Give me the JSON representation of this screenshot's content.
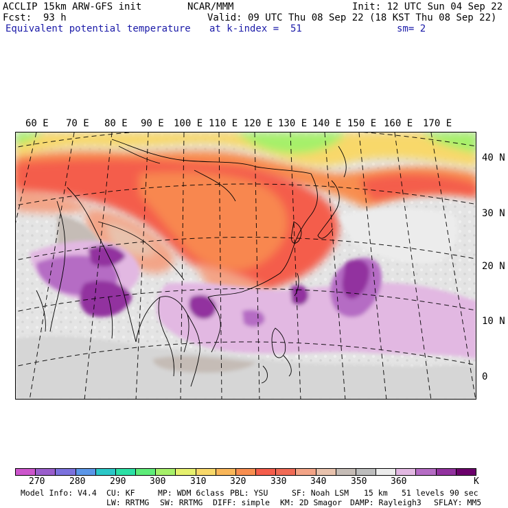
{
  "header": {
    "model": "ACCLIP 15km ARW-GFS init",
    "fcst_label": "Fcst:",
    "fcst_value": "93 h",
    "org": "NCAR/MMM",
    "init": "Init: 12 UTC Sun 04 Sep 22",
    "valid": "Valid: 09 UTC Thu 08 Sep 22 (18 KST Thu 08 Sep 22)",
    "field": "Equivalent potential temperature",
    "level": "at k-index =  51",
    "smooth": "sm= 2"
  },
  "map": {
    "lon_labels": [
      "60 E",
      "70 E",
      "80 E",
      "90 E",
      "100 E",
      "110 E",
      "120 E",
      "130 E",
      "140 E",
      "150 E",
      "160 E",
      "170 E"
    ],
    "lat_labels": [
      "40 N",
      "30 N",
      "20 N",
      "10 N",
      "0"
    ]
  },
  "colorbar": {
    "colors": [
      "#cc55cc",
      "#9a5ecc",
      "#7b71dd",
      "#5b96e8",
      "#2bc7c7",
      "#2ce0a5",
      "#5eec79",
      "#a6f06a",
      "#e6f06e",
      "#f8d86a",
      "#f9b659",
      "#f88e50",
      "#f45d4b",
      "#f06a55",
      "#f3a487",
      "#e8c2ad",
      "#c5bcb6",
      "#bdbdbd",
      "#ececec",
      "#e2b8e2",
      "#b56cc4",
      "#92329f",
      "#6b006b"
    ],
    "labels": [
      "270",
      "280",
      "290",
      "300",
      "310",
      "320",
      "330",
      "340",
      "350",
      "360",
      "K"
    ]
  },
  "footer": {
    "line1": [
      "Model Info: V4.4",
      "CU: KF",
      "MP: WDM 6class",
      "PBL: YSU",
      "SF: Noah LSM",
      "15 km",
      "51 levels",
      "90 sec"
    ],
    "line2": [
      "LW: RRTMG",
      "SW: RRTMG",
      "DIFF: simple",
      "KM: 2D Smagor",
      "DAMP: Rayleigh3",
      "SFLAY: MM5"
    ]
  }
}
